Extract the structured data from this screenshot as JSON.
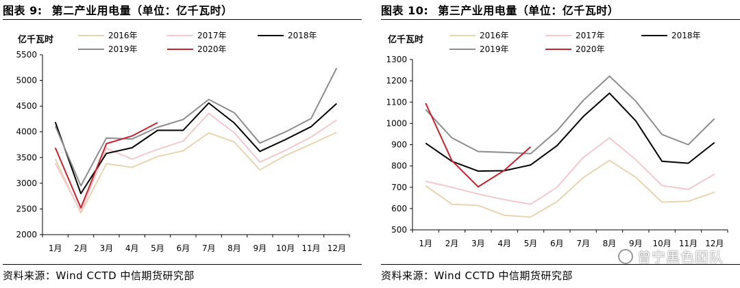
{
  "charts": [
    {
      "figure_label": "图表 9:",
      "figure_title": "第二产业用电量（单位：亿千瓦时）",
      "source": "资料来源：Wind CCTD 中信期货研究部"
    },
    {
      "figure_label": "图表 10:",
      "figure_title": "第三产业用电量（单位：亿千瓦时）",
      "source": "资料来源：Wind CCTD 中信期货研究部"
    }
  ],
  "watermark": "曾宁黑色团队",
  "series_colors": {
    "2016年": "#e8d5b0",
    "2017年": "#f5c8cc",
    "2018年": "#000000",
    "2019年": "#8c8c8c",
    "2020年": "#c8202c"
  },
  "chart_data": [
    {
      "type": "line",
      "title": "第二产业用电量（单位：亿千瓦时）",
      "ylabel": "亿千瓦时",
      "xlabel": "",
      "categories": [
        "1月",
        "2月",
        "3月",
        "4月",
        "5月",
        "6月",
        "7月",
        "8月",
        "9月",
        "10月",
        "11月",
        "12月"
      ],
      "ylim": [
        2000,
        5500
      ],
      "yticks": [
        2000,
        2500,
        3000,
        3500,
        4000,
        4500,
        5000,
        5500
      ],
      "legend_position": "top",
      "grid": false,
      "series": [
        {
          "name": "2016年",
          "values": [
            3470,
            2420,
            3380,
            3310,
            3520,
            3630,
            3980,
            3800,
            3260,
            3540,
            3760,
            3990
          ]
        },
        {
          "name": "2017年",
          "values": [
            3390,
            2450,
            3680,
            3470,
            3660,
            3820,
            4360,
            3980,
            3410,
            3640,
            3900,
            4230
          ]
        },
        {
          "name": "2018年",
          "values": [
            4190,
            2800,
            3580,
            3690,
            4030,
            4030,
            4560,
            4170,
            3620,
            3850,
            4100,
            4550
          ]
        },
        {
          "name": "2019年",
          "values": [
            4110,
            2950,
            3880,
            3860,
            4090,
            4240,
            4630,
            4370,
            3780,
            4000,
            4260,
            5240
          ]
        },
        {
          "name": "2020年",
          "values": [
            3690,
            2520,
            3770,
            3920,
            4180,
            null,
            null,
            null,
            null,
            null,
            null,
            null
          ]
        }
      ]
    },
    {
      "type": "line",
      "title": "第三产业用电量（单位：亿千瓦时）",
      "ylabel": "亿千瓦时",
      "xlabel": "",
      "categories": [
        "1月",
        "2月",
        "3月",
        "4月",
        "5月",
        "6月",
        "7月",
        "8月",
        "9月",
        "10月",
        "11月",
        "12月"
      ],
      "ylim": [
        500,
        1300
      ],
      "yticks": [
        500,
        600,
        700,
        800,
        900,
        1000,
        1100,
        1200,
        1300
      ],
      "legend_position": "top",
      "grid": false,
      "series": [
        {
          "name": "2016年",
          "values": [
            707,
            620,
            615,
            568,
            560,
            632,
            745,
            826,
            747,
            630,
            634,
            677
          ]
        },
        {
          "name": "2017年",
          "values": [
            728,
            700,
            668,
            642,
            620,
            700,
            840,
            932,
            830,
            708,
            690,
            762
          ]
        },
        {
          "name": "2018年",
          "values": [
            907,
            822,
            776,
            778,
            805,
            895,
            1032,
            1142,
            1012,
            822,
            813,
            910
          ]
        },
        {
          "name": "2019年",
          "values": [
            1065,
            932,
            868,
            864,
            858,
            965,
            1108,
            1222,
            1105,
            948,
            900,
            1022
          ]
        },
        {
          "name": "2020年",
          "values": [
            1095,
            825,
            702,
            780,
            890,
            null,
            null,
            null,
            null,
            null,
            null,
            null
          ]
        }
      ]
    }
  ]
}
